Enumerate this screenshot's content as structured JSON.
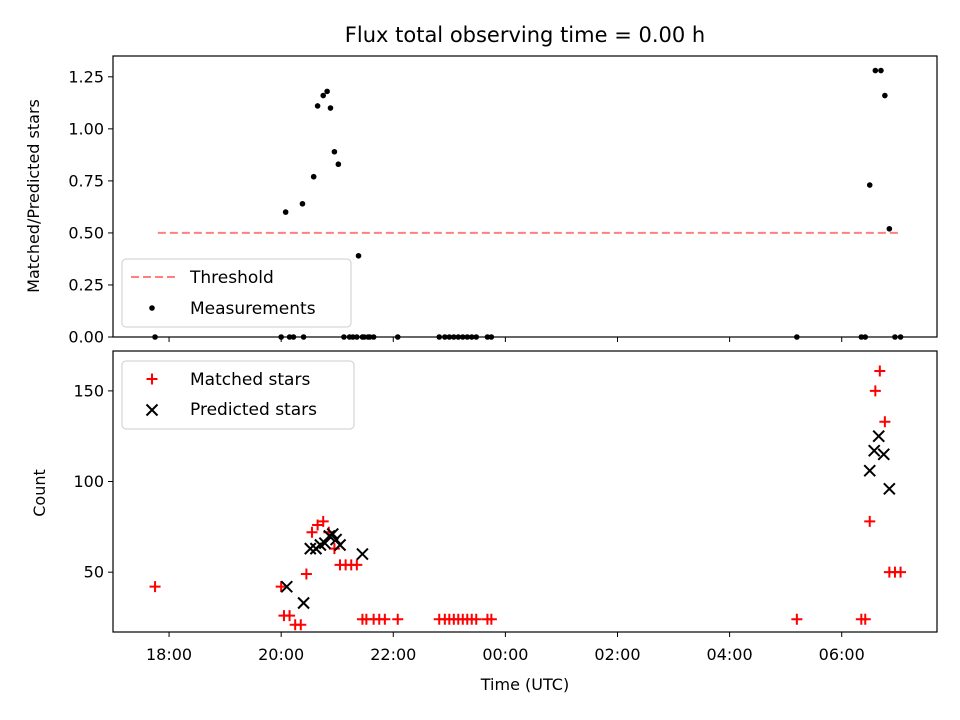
{
  "chart_data": [
    {
      "type": "scatter",
      "title": "Flux total observing time = 0.00 h",
      "xlabel": "",
      "ylabel": "Matched/Predicted stars",
      "x_unit": "hours since 00:00 UTC",
      "xlim": [
        -7.0,
        7.7
      ],
      "ylim": [
        0.0,
        1.35
      ],
      "yticks": [
        0.0,
        0.25,
        0.5,
        0.75,
        1.0,
        1.25
      ],
      "ytick_labels": [
        "0.00",
        "0.25",
        "0.50",
        "0.75",
        "1.00",
        "1.25"
      ],
      "legend": {
        "placement": "lower-left",
        "entries": [
          "Threshold",
          "Measurements"
        ]
      },
      "colors": {
        "threshold": "#ff7f7f",
        "measurements": "#000000"
      },
      "threshold": {
        "name": "Threshold",
        "y": 0.5,
        "x_range": [
          -6.2,
          7.05
        ]
      },
      "series": [
        {
          "name": "Measurements",
          "x": [
            -6.25,
            -4.0,
            -3.85,
            -3.78,
            -3.6,
            -3.92,
            -3.62,
            -3.42,
            -3.35,
            -3.25,
            -3.18,
            -3.12,
            -3.05,
            -2.98,
            -2.88,
            -2.78,
            -2.72,
            -2.65,
            -2.55,
            -2.45,
            -2.35,
            -2.62,
            -2.52,
            -2.42,
            -1.92,
            -1.18,
            -1.08,
            -1.0,
            -0.92,
            -0.84,
            -0.76,
            -0.68,
            -0.6,
            -0.52,
            -0.32,
            -0.25,
            5.2,
            6.35,
            6.42,
            6.5,
            6.6,
            6.7,
            6.77,
            6.85,
            6.95,
            7.05
          ],
          "y": [
            0.0,
            0.0,
            0.0,
            0.0,
            0.0,
            0.6,
            0.64,
            0.77,
            1.11,
            1.16,
            1.18,
            1.1,
            0.89,
            0.83,
            0.0,
            0.0,
            0.0,
            0.0,
            0.0,
            0.0,
            0.0,
            0.39,
            0.0,
            0.0,
            0.0,
            0.0,
            0.0,
            0.0,
            0.0,
            0.0,
            0.0,
            0.0,
            0.0,
            0.0,
            0.0,
            0.0,
            0.0,
            0.0,
            0.0,
            0.73,
            1.28,
            1.28,
            1.16,
            0.52,
            0.0,
            0.0
          ]
        }
      ]
    },
    {
      "type": "scatter",
      "title": "",
      "xlabel": "Time (UTC)",
      "ylabel": "Count",
      "x_unit": "hours since 00:00 UTC",
      "xlim": [
        -7.0,
        7.7
      ],
      "ylim": [
        17,
        172
      ],
      "yticks": [
        50,
        100,
        150
      ],
      "ytick_labels": [
        "50",
        "100",
        "150"
      ],
      "xticks": [
        -6,
        -4,
        -2,
        0,
        2,
        4,
        6
      ],
      "xtick_labels": [
        "18:00",
        "20:00",
        "22:00",
        "00:00",
        "02:00",
        "04:00",
        "06:00"
      ],
      "legend": {
        "placement": "top-left",
        "entries": [
          "Matched stars",
          "Predicted stars"
        ]
      },
      "colors": {
        "matched": "#ff0000",
        "predicted": "#000000"
      },
      "series": [
        {
          "name": "Matched stars",
          "x": [
            -6.25,
            -4.0,
            -3.95,
            -3.85,
            -3.75,
            -3.65,
            -3.55,
            -3.45,
            -3.35,
            -3.25,
            -3.15,
            -3.05,
            -2.95,
            -2.85,
            -2.75,
            -2.65,
            -2.55,
            -2.48,
            -2.35,
            -2.25,
            -2.15,
            -1.92,
            -1.18,
            -1.08,
            -1.0,
            -0.92,
            -0.84,
            -0.76,
            -0.68,
            -0.6,
            -0.52,
            -0.32,
            -0.25,
            5.2,
            6.35,
            6.42,
            6.5,
            6.6,
            6.68,
            6.77,
            6.85,
            6.95,
            7.05
          ],
          "y": [
            42,
            42,
            26,
            26,
            21,
            21,
            49,
            72,
            76,
            78,
            72,
            63,
            54,
            54,
            54,
            54,
            24,
            24,
            24,
            24,
            24,
            24,
            24,
            24,
            24,
            24,
            24,
            24,
            24,
            24,
            24,
            24,
            24,
            24,
            24,
            24,
            78,
            150,
            161,
            133,
            50,
            50,
            50
          ]
        },
        {
          "name": "Predicted stars",
          "x": [
            -3.9,
            -3.6,
            -3.48,
            -3.38,
            -3.3,
            -3.22,
            -3.14,
            -3.08,
            -3.02,
            -2.95,
            -2.55,
            6.5,
            6.58,
            6.66,
            6.75,
            6.85
          ],
          "y": [
            42,
            33,
            63,
            63,
            65,
            66,
            70,
            71,
            68,
            65,
            60,
            106,
            117,
            125,
            115,
            96
          ]
        }
      ]
    }
  ]
}
